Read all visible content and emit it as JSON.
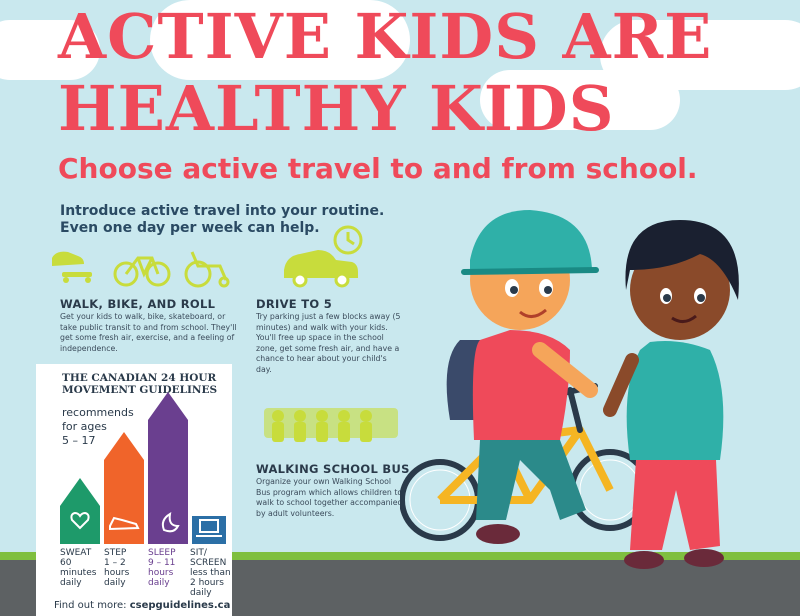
{
  "header": {
    "title_line1": "ACTIVE KIDS ARE",
    "title_line2": "HEALTHY KIDS",
    "subtitle": "Choose active travel to and from school."
  },
  "intro": {
    "line1": "Introduce active travel into your routine.",
    "line2": "Even one day per week can help."
  },
  "sections": {
    "walk_bike_roll": {
      "title": "WALK, BIKE, AND ROLL",
      "body": "Get your kids to walk, bike, skateboard, or take public transit to and from school. They'll get some fresh air, exercise, and a feeling of independence."
    },
    "drive_to_5": {
      "title": "DRIVE TO 5",
      "body": "Try parking just a few blocks away (5 minutes) and walk with your kids. You'll free up space in the school zone, get some fresh air, and have a chance to hear about your child's day."
    },
    "walking_school_bus": {
      "title": "WALKING SCHOOL BUS",
      "body": "Organize your own Walking School Bus program which allows children to walk to school together accompanied by adult volunteers."
    }
  },
  "guidelines": {
    "title_line1": "THE CANADIAN 24 HOUR",
    "title_line2": "MOVEMENT GUIDELINES",
    "rec_line1": "recommends",
    "rec_line2": "for ages",
    "rec_line3": "5 – 17",
    "bars": [
      {
        "name": "SWEAT",
        "l1": "SWEAT",
        "l2": "60",
        "l3": "minutes",
        "l4": "daily",
        "color": "#1e9a6a",
        "icon": "heart-icon"
      },
      {
        "name": "STEP",
        "l1": "STEP",
        "l2": "1 – 2",
        "l3": "hours",
        "l4": "daily",
        "color": "#f0642a",
        "icon": "shoe-icon"
      },
      {
        "name": "SLEEP",
        "l1": "SLEEP",
        "l2": "9 – 11",
        "l3": "hours",
        "l4": "daily",
        "color": "#6a3f8f",
        "icon": "moon-icon"
      },
      {
        "name": "SIT/SCREEN",
        "l1": "SIT/",
        "l2": "SCREEN",
        "l3": "less than",
        "l4": "2 hours",
        "l5": "daily",
        "color": "#2b6fa6",
        "icon": "laptop-icon"
      }
    ],
    "footer_prefix": "Find out more:",
    "footer_link": "csepguidelines.ca"
  },
  "colors": {
    "title_red": "#ef4a5a",
    "sky": "#c9e8ee",
    "icon_yellow_green": "#c8dc3c",
    "text_dark": "#2a4a63"
  }
}
